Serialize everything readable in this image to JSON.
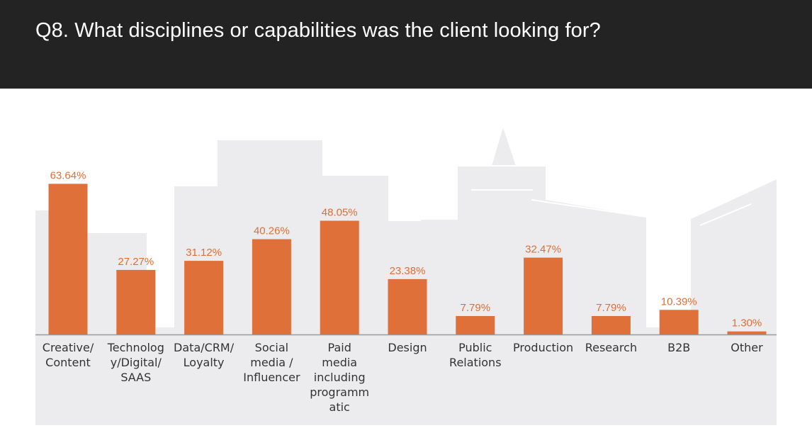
{
  "header": {
    "title": "Q8. What disciplines or capabilities was the client looking for?"
  },
  "colors": {
    "header_bg": "#232323",
    "bar": "#e0703a",
    "value_text": "#e06e32",
    "background_shape": "#ececee",
    "axis": "#9a9a9a"
  },
  "chart_data": {
    "type": "bar",
    "title": "Q8. What disciplines or capabilities was the client looking for?",
    "categories": [
      [
        "Creative/",
        "Content"
      ],
      [
        "Technolog",
        "y/Digital/",
        "SAAS"
      ],
      [
        "Data/CRM/",
        "Loyalty"
      ],
      [
        "Social",
        "media /",
        "Influencer"
      ],
      [
        "Paid",
        "media",
        "including",
        "programm",
        "atic"
      ],
      [
        "Design"
      ],
      [
        "Public",
        "Relations"
      ],
      [
        "Production"
      ],
      [
        "Research"
      ],
      [
        "B2B"
      ],
      [
        "Other"
      ]
    ],
    "values": [
      63.64,
      27.27,
      31.12,
      40.26,
      48.05,
      23.38,
      7.79,
      32.47,
      7.79,
      10.39,
      1.3
    ],
    "value_labels": [
      "63.64%",
      "27.27%",
      "31.12%",
      "40.26%",
      "48.05%",
      "23.38%",
      "7.79%",
      "32.47%",
      "7.79%",
      "10.39%",
      "1.30%"
    ],
    "ylim": [
      0,
      70
    ],
    "xlabel": "",
    "ylabel": "",
    "grid": false,
    "legend": "none"
  }
}
